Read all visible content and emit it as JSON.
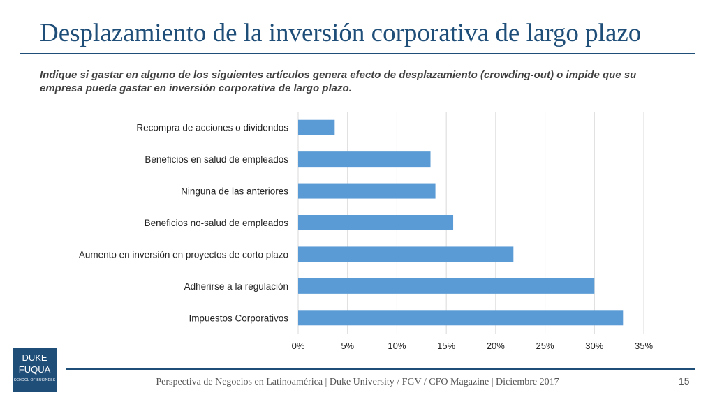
{
  "slide": {
    "title": "Desplazamiento de la inversión corporativa de largo plazo",
    "subtitle": "Indique si gastar en alguno de los siguientes artículos genera efecto de desplazamiento (crowding-out) o impide que su empresa pueda gastar en inversión corporativa de largo plazo.",
    "footer": "Perspectiva de Negocios en Latinoamérica | Duke University / FGV / CFO Magazine | Diciembre 2017",
    "page_number": "15",
    "logo": {
      "line1": "DUKE",
      "line2": "FUQUA",
      "line3": "SCHOOL OF BUSINESS"
    }
  },
  "colors": {
    "bar": "#5b9bd5",
    "title": "#1f4e79",
    "grid": "#d9d9d9"
  },
  "chart_data": {
    "type": "bar",
    "orientation": "horizontal",
    "categories": [
      "Recompra de acciones o dividendos",
      "Beneficios en salud de empleados",
      "Ninguna de las anteriores",
      "Beneficios no-salud de empleados",
      "Aumento en inversión en proyectos de corto plazo",
      "Adherirse a la regulación",
      "Impuestos Corporativos"
    ],
    "values": [
      3.7,
      13.4,
      13.9,
      15.7,
      21.8,
      30.0,
      32.9
    ],
    "xlim": [
      0,
      35
    ],
    "xticks": [
      0,
      5,
      10,
      15,
      20,
      25,
      30,
      35
    ],
    "tick_labels": [
      "0%",
      "5%",
      "10%",
      "15%",
      "20%",
      "25%",
      "30%",
      "35%"
    ],
    "grid": true,
    "legend": "none"
  }
}
